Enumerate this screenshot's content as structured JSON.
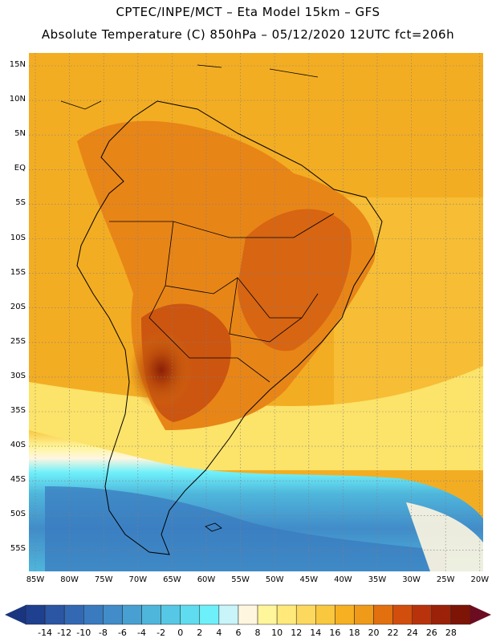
{
  "header": {
    "line1": "CPTEC/INPE/MCT –  Eta Model 15km – GFS",
    "line2": "Absolute Temperature (C) 850hPa – 05/12/2020 12UTC fct=206h"
  },
  "axes": {
    "lat_labels": [
      "15N",
      "10N",
      "5N",
      "EQ",
      "5S",
      "10S",
      "15S",
      "20S",
      "25S",
      "30S",
      "35S",
      "40S",
      "45S",
      "50S",
      "55S"
    ],
    "lon_labels": [
      "85W",
      "80W",
      "75W",
      "70W",
      "65W",
      "60W",
      "55W",
      "50W",
      "45W",
      "40W",
      "35W",
      "30W",
      "25W",
      "20W"
    ]
  },
  "colorbar": {
    "labels": [
      "-14",
      "-12",
      "-10",
      "-8",
      "-6",
      "-4",
      "-2",
      "0",
      "2",
      "4",
      "6",
      "8",
      "10",
      "12",
      "14",
      "16",
      "18",
      "20",
      "22",
      "24",
      "26",
      "28"
    ],
    "colors": [
      "#1f3f8f",
      "#2a56a3",
      "#3369b3",
      "#3a7bbf",
      "#418cc9",
      "#48a0d2",
      "#4fb6db",
      "#56c8e5",
      "#5fdcef",
      "#6ef0fa",
      "#c8f4fa",
      "#fff6e0",
      "#fff59a",
      "#ffe97a",
      "#fcd85e",
      "#f9c83f",
      "#f6b021",
      "#f09a1a",
      "#e2700f",
      "#d24e0c",
      "#b8330b",
      "#9b2108",
      "#7d1405"
    ],
    "left_arrow_color": "#1a3580",
    "right_arrow_color": "#6b0c22"
  }
}
